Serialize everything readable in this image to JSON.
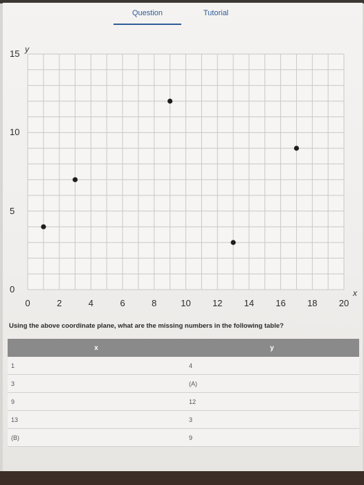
{
  "tabs": [
    {
      "label": "Question",
      "active": true
    },
    {
      "label": "Tutorial",
      "active": false
    }
  ],
  "chart_data": {
    "type": "scatter",
    "x_axis_label": "x",
    "y_axis_label": "y",
    "x_ticks": [
      "0",
      "2",
      "4",
      "6",
      "8",
      "10",
      "12",
      "14",
      "16",
      "18",
      "20"
    ],
    "y_ticks": [
      "0",
      "5",
      "10",
      "15"
    ],
    "xlim": [
      0,
      20
    ],
    "ylim": [
      0,
      15
    ],
    "grid": true,
    "points": [
      {
        "x": 1,
        "y": 4
      },
      {
        "x": 3,
        "y": 7
      },
      {
        "x": 9,
        "y": 12
      },
      {
        "x": 13,
        "y": 3
      },
      {
        "x": 17,
        "y": 9
      }
    ]
  },
  "question": "Using the above coordinate plane, what are the missing numbers in the following table?",
  "table": {
    "headers": [
      "x",
      "y"
    ],
    "rows": [
      {
        "x": "1",
        "y": "4"
      },
      {
        "x": "3",
        "y": "(A)"
      },
      {
        "x": "9",
        "y": "12"
      },
      {
        "x": "13",
        "y": "3"
      },
      {
        "x": "(B)",
        "y": "9"
      }
    ]
  }
}
